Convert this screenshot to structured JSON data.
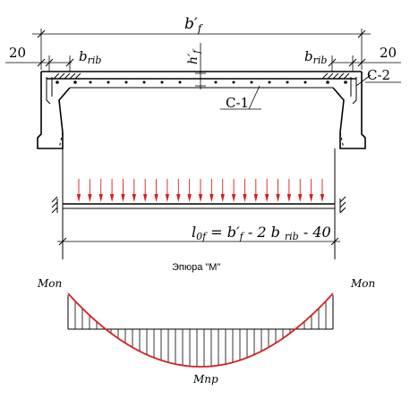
{
  "section": {
    "flange_width_label": "b′",
    "flange_width_sub": "f",
    "left_edge_label": "20",
    "right_edge_label": "20",
    "left_rib_label": "b",
    "left_rib_sub": "rib",
    "right_rib_label": "b",
    "right_rib_sub": "rib",
    "thickness_label": "h′",
    "thickness_sub": "f",
    "mesh_1_label": "С-1",
    "mesh_2_label": "С-2"
  },
  "span": {
    "formula_lhs": "l",
    "formula_lhs_sub": "0f",
    "formula_rhs": " = b′",
    "formula_rhs_sub1": "f",
    "formula_mid": " - 2 b ",
    "formula_rhs_sub2": "rib",
    "formula_tail": " - 40"
  },
  "diagram": {
    "title": "Эпюра \"М\"",
    "left_moment_label": "Моп",
    "right_moment_label": "Моп",
    "mid_moment_label": "Мпр"
  },
  "colors": {
    "load": "#d42020",
    "curve": "#d42020",
    "ink": "#000000"
  }
}
